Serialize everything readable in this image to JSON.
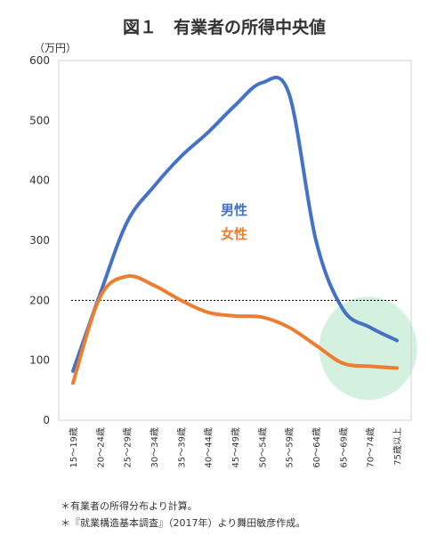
{
  "chart_data": {
    "type": "line",
    "title": "図１　有業者の所得中央値",
    "unit_label": "（万円）",
    "ylim": [
      0,
      600
    ],
    "yticks": [
      0,
      100,
      200,
      300,
      400,
      500,
      600
    ],
    "categories": [
      "15～19歳",
      "20～24歳",
      "25～29歳",
      "30～34歳",
      "35～39歳",
      "40～44歳",
      "45～49歳",
      "50～54歳",
      "55～59歳",
      "60～64歳",
      "65～69歳",
      "70～74歳",
      "75歳以上"
    ],
    "series": [
      {
        "name": "男性",
        "color": "#4472C4",
        "values": [
          82,
          210,
          330,
          390,
          440,
          480,
          525,
          563,
          545,
          300,
          185,
          155,
          133
        ]
      },
      {
        "name": "女性",
        "color": "#ED7D31",
        "values": [
          62,
          205,
          240,
          225,
          200,
          180,
          174,
          172,
          155,
          125,
          95,
          90,
          87
        ]
      }
    ],
    "reference_line": {
      "value": 200,
      "style": "dotted"
    },
    "highlight": {
      "shape": "circle",
      "color": "#d4f0de"
    },
    "grid": false,
    "legend": "inline-center"
  },
  "notes": [
    "＊有業者の所得分布より計算。",
    "＊『就業構造基本調査』（2017年）より舞田敏彦作成。"
  ]
}
